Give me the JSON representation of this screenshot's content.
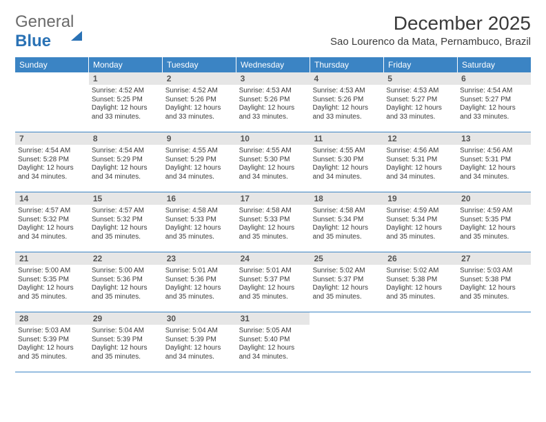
{
  "logo": {
    "part1": "General",
    "part2": "Blue"
  },
  "title": "December 2025",
  "location": "Sao Lourenco da Mata, Pernambuco, Brazil",
  "weekdays": [
    "Sunday",
    "Monday",
    "Tuesday",
    "Wednesday",
    "Thursday",
    "Friday",
    "Saturday"
  ],
  "colors": {
    "header_bg": "#3b84c4",
    "header_text": "#ffffff",
    "daynum_bg": "#e6e6e6",
    "text": "#3a3a3a",
    "divider": "#3b84c4",
    "logo_blue": "#2a72b5"
  },
  "fonts": {
    "title_size": 28,
    "location_size": 15,
    "weekday_size": 12,
    "daynum_size": 12,
    "body_size": 10
  },
  "weeks": [
    [
      null,
      {
        "n": "1",
        "sr": "4:52 AM",
        "ss": "5:25 PM",
        "dl": "12 hours and 33 minutes."
      },
      {
        "n": "2",
        "sr": "4:52 AM",
        "ss": "5:26 PM",
        "dl": "12 hours and 33 minutes."
      },
      {
        "n": "3",
        "sr": "4:53 AM",
        "ss": "5:26 PM",
        "dl": "12 hours and 33 minutes."
      },
      {
        "n": "4",
        "sr": "4:53 AM",
        "ss": "5:26 PM",
        "dl": "12 hours and 33 minutes."
      },
      {
        "n": "5",
        "sr": "4:53 AM",
        "ss": "5:27 PM",
        "dl": "12 hours and 33 minutes."
      },
      {
        "n": "6",
        "sr": "4:54 AM",
        "ss": "5:27 PM",
        "dl": "12 hours and 33 minutes."
      }
    ],
    [
      {
        "n": "7",
        "sr": "4:54 AM",
        "ss": "5:28 PM",
        "dl": "12 hours and 34 minutes."
      },
      {
        "n": "8",
        "sr": "4:54 AM",
        "ss": "5:29 PM",
        "dl": "12 hours and 34 minutes."
      },
      {
        "n": "9",
        "sr": "4:55 AM",
        "ss": "5:29 PM",
        "dl": "12 hours and 34 minutes."
      },
      {
        "n": "10",
        "sr": "4:55 AM",
        "ss": "5:30 PM",
        "dl": "12 hours and 34 minutes."
      },
      {
        "n": "11",
        "sr": "4:55 AM",
        "ss": "5:30 PM",
        "dl": "12 hours and 34 minutes."
      },
      {
        "n": "12",
        "sr": "4:56 AM",
        "ss": "5:31 PM",
        "dl": "12 hours and 34 minutes."
      },
      {
        "n": "13",
        "sr": "4:56 AM",
        "ss": "5:31 PM",
        "dl": "12 hours and 34 minutes."
      }
    ],
    [
      {
        "n": "14",
        "sr": "4:57 AM",
        "ss": "5:32 PM",
        "dl": "12 hours and 34 minutes."
      },
      {
        "n": "15",
        "sr": "4:57 AM",
        "ss": "5:32 PM",
        "dl": "12 hours and 35 minutes."
      },
      {
        "n": "16",
        "sr": "4:58 AM",
        "ss": "5:33 PM",
        "dl": "12 hours and 35 minutes."
      },
      {
        "n": "17",
        "sr": "4:58 AM",
        "ss": "5:33 PM",
        "dl": "12 hours and 35 minutes."
      },
      {
        "n": "18",
        "sr": "4:58 AM",
        "ss": "5:34 PM",
        "dl": "12 hours and 35 minutes."
      },
      {
        "n": "19",
        "sr": "4:59 AM",
        "ss": "5:34 PM",
        "dl": "12 hours and 35 minutes."
      },
      {
        "n": "20",
        "sr": "4:59 AM",
        "ss": "5:35 PM",
        "dl": "12 hours and 35 minutes."
      }
    ],
    [
      {
        "n": "21",
        "sr": "5:00 AM",
        "ss": "5:35 PM",
        "dl": "12 hours and 35 minutes."
      },
      {
        "n": "22",
        "sr": "5:00 AM",
        "ss": "5:36 PM",
        "dl": "12 hours and 35 minutes."
      },
      {
        "n": "23",
        "sr": "5:01 AM",
        "ss": "5:36 PM",
        "dl": "12 hours and 35 minutes."
      },
      {
        "n": "24",
        "sr": "5:01 AM",
        "ss": "5:37 PM",
        "dl": "12 hours and 35 minutes."
      },
      {
        "n": "25",
        "sr": "5:02 AM",
        "ss": "5:37 PM",
        "dl": "12 hours and 35 minutes."
      },
      {
        "n": "26",
        "sr": "5:02 AM",
        "ss": "5:38 PM",
        "dl": "12 hours and 35 minutes."
      },
      {
        "n": "27",
        "sr": "5:03 AM",
        "ss": "5:38 PM",
        "dl": "12 hours and 35 minutes."
      }
    ],
    [
      {
        "n": "28",
        "sr": "5:03 AM",
        "ss": "5:39 PM",
        "dl": "12 hours and 35 minutes."
      },
      {
        "n": "29",
        "sr": "5:04 AM",
        "ss": "5:39 PM",
        "dl": "12 hours and 35 minutes."
      },
      {
        "n": "30",
        "sr": "5:04 AM",
        "ss": "5:39 PM",
        "dl": "12 hours and 34 minutes."
      },
      {
        "n": "31",
        "sr": "5:05 AM",
        "ss": "5:40 PM",
        "dl": "12 hours and 34 minutes."
      },
      null,
      null,
      null
    ]
  ],
  "labels": {
    "sunrise": "Sunrise:",
    "sunset": "Sunset:",
    "daylight": "Daylight:"
  }
}
